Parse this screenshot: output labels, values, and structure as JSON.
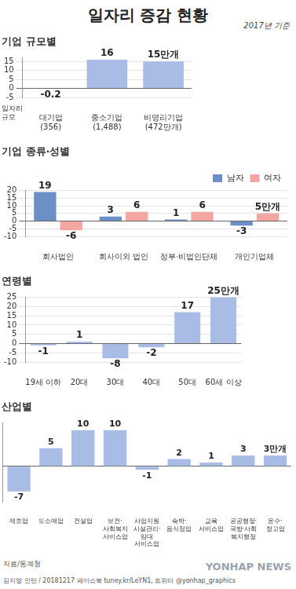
{
  "title": "일자리 증감 현황",
  "subtitle": "2017년 기준",
  "source": "자료/통계청",
  "credit": "김지영 인턴 / 20181217 페이스북 tuney.kr/LeYN1, 트위터 @yonhap_graphics",
  "watermark": "YONHAP NEWS",
  "chart_data": [
    {
      "type": "bar",
      "title": "기업 규모별",
      "categories": [
        "대기업",
        "중소기업",
        "비영리기업"
      ],
      "values": [
        -0.2,
        16,
        15
      ],
      "value_labels": [
        "-0.2",
        "16",
        "15만개"
      ],
      "color": "#a9bce6",
      "size_label": "일자리\n규모",
      "size_labels": [
        "(356)",
        "(1,488)",
        "(472만개)"
      ],
      "ylim": [
        -5,
        17
      ],
      "yticks": [
        -5,
        0,
        5,
        10,
        15
      ],
      "grid": true,
      "data_labels": true
    },
    {
      "type": "bar",
      "title": "기업 종류·성별",
      "categories": [
        "회사법인",
        "회사이외 법인",
        "정부·비법인단체",
        "개인기업체"
      ],
      "series": [
        {
          "name": "남자",
          "color": "#6c8fc7",
          "values": [
            19,
            3,
            1,
            -3
          ],
          "value_labels": [
            "19",
            "3",
            "1",
            "-3"
          ]
        },
        {
          "name": "여자",
          "color": "#f4a6a3",
          "values": [
            -6,
            6,
            6,
            5
          ],
          "value_labels": [
            "-6",
            "6",
            "6",
            "5만개"
          ]
        }
      ],
      "ylim": [
        -10,
        20
      ],
      "yticks": [
        -10,
        -5,
        0,
        5,
        10,
        15,
        20
      ],
      "grid": true,
      "legend": "top-right",
      "data_labels": true
    },
    {
      "type": "bar",
      "title": "연령별",
      "categories": [
        "19세 이하",
        "20대",
        "30대",
        "40대",
        "50대",
        "60세 이상"
      ],
      "values": [
        -1,
        1,
        -8,
        -2,
        17,
        25
      ],
      "value_labels": [
        "-1",
        "1",
        "-8",
        "-2",
        "17",
        "25만개"
      ],
      "color": "#a9bce6",
      "ylim": [
        -10,
        25
      ],
      "yticks": [
        -10,
        -5,
        0,
        5,
        10,
        15,
        20,
        25
      ],
      "grid": true,
      "data_labels": true
    },
    {
      "type": "bar",
      "title": "산업별",
      "categories": [
        "제조업",
        "도소매업",
        "건설업",
        "보건·\n사회복지\n서비스업",
        "사업지원\n시설관리·\n임대\n서비스업",
        "숙박·\n음식점업",
        "교육\n서비스업",
        "공공행정·\n국방·사회\n복지행정",
        "운수·\n창고업"
      ],
      "values": [
        -7,
        5,
        10,
        10,
        -1,
        2,
        1,
        3,
        3
      ],
      "value_labels": [
        "-7",
        "5",
        "10",
        "10",
        "-1",
        "2",
        "1",
        "3",
        "3만개"
      ],
      "color": "#a9bce6",
      "ylim": [
        -10,
        12
      ],
      "yticks": [
        0
      ],
      "grid": true,
      "tick_labels": "x",
      "data_labels": true
    }
  ]
}
